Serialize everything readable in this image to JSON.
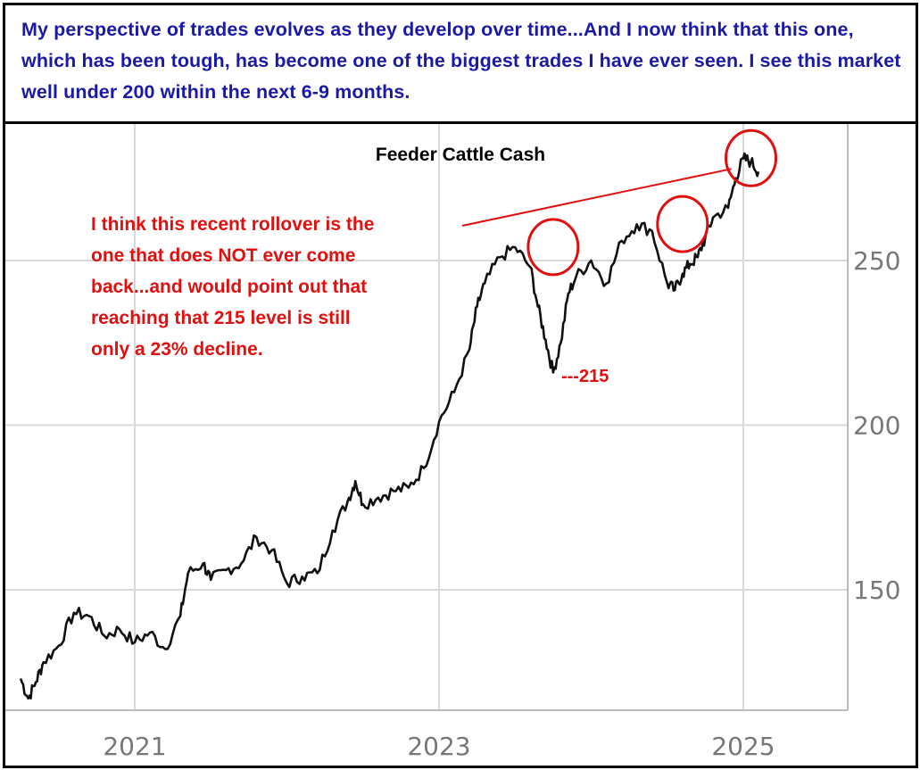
{
  "header": {
    "quote": "My perspective of trades evolves as they develop over time...And I now think that this one, which has been tough, has become one of the biggest trades I have ever seen. I see this market well under 200 within the next 6-9 months."
  },
  "colors": {
    "header_text": "#1a1aa6",
    "annotation": "#e01010",
    "price_line": "#111111",
    "grid": "#d9d9d9",
    "tick_label": "#777777"
  },
  "chart_data": {
    "type": "line",
    "title": "Feeder Cattle Cash",
    "xlabel": "",
    "ylabel": "",
    "xlim": [
      2020.25,
      2025.7
    ],
    "ylim": [
      111,
      286
    ],
    "x_ticks": [
      2021,
      2023,
      2025
    ],
    "x_tick_labels": [
      "2021",
      "2023",
      "2025"
    ],
    "y_ticks": [
      150,
      200,
      250
    ],
    "y_tick_labels": [
      "150",
      "200",
      "250"
    ],
    "y_axis_side": "right",
    "grid": true,
    "series": [
      {
        "x": [
          2020.25,
          2020.3,
          2020.35,
          2020.4,
          2020.5,
          2020.6,
          2020.7,
          2020.8,
          2020.9,
          2021.0,
          2021.1,
          2021.2,
          2021.3,
          2021.35,
          2021.45,
          2021.5,
          2021.6,
          2021.7,
          2021.8,
          2021.9,
          2022.0,
          2022.1,
          2022.2,
          2022.3,
          2022.4,
          2022.45,
          2022.5,
          2022.6,
          2022.7,
          2022.8,
          2022.9,
          2023.0,
          2023.1,
          2023.2,
          2023.25,
          2023.3,
          2023.4,
          2023.5,
          2023.6,
          2023.65,
          2023.7,
          2023.75,
          2023.8,
          2023.85,
          2023.9,
          2024.0,
          2024.1,
          2024.2,
          2024.3,
          2024.4,
          2024.5,
          2024.55,
          2024.6,
          2024.65,
          2024.7,
          2024.75,
          2024.8,
          2024.9,
          2024.95,
          2025.0,
          2025.05,
          2025.1
        ],
        "y": [
          123,
          117,
          122,
          128,
          133,
          143,
          142,
          136,
          138,
          134,
          137,
          132,
          142,
          155,
          158,
          153,
          156,
          158,
          166,
          162,
          152,
          154,
          155,
          168,
          177,
          183,
          176,
          178,
          180,
          181,
          187,
          201,
          210,
          223,
          236,
          243,
          251,
          254,
          248,
          236,
          226,
          216,
          225,
          240,
          245,
          250,
          243,
          256,
          261,
          259,
          243,
          241,
          246,
          249,
          251,
          257,
          263,
          266,
          275,
          281,
          280,
          277
        ]
      }
    ],
    "annotations": [
      {
        "text": "I think this recent rollover is the",
        "anchor": "upper-left"
      },
      {
        "text": "one that does NOT ever come",
        "anchor": "upper-left"
      },
      {
        "text": "back...and would point out that",
        "anchor": "upper-left"
      },
      {
        "text": "reaching that 215 level is still",
        "anchor": "upper-left"
      },
      {
        "text": "only a 23% decline.",
        "anchor": "upper-left"
      }
    ],
    "level_label": {
      "text": "---215",
      "x": 2023.78,
      "y": 215
    },
    "highlighted_peaks": [
      {
        "x": 2023.75,
        "y": 253
      },
      {
        "x": 2024.6,
        "y": 260
      },
      {
        "x": 2025.05,
        "y": 280
      }
    ]
  }
}
